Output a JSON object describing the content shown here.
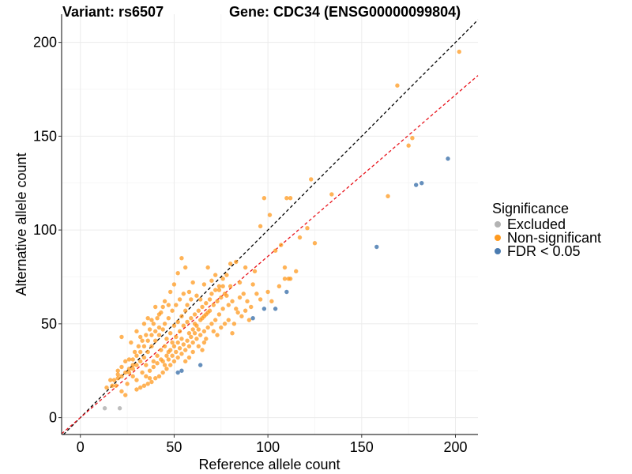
{
  "chart_data": {
    "type": "scatter",
    "title_left": "Variant: rs6507",
    "title_right": "Gene: CDC34 (ENSG00000099804)",
    "xlabel": "Reference allele count",
    "ylabel": "Alternative allele count",
    "xlim": [
      -10,
      212
    ],
    "ylim": [
      -9,
      215
    ],
    "xticks": [
      0,
      50,
      100,
      150,
      200
    ],
    "yticks": [
      0,
      50,
      100,
      150,
      200
    ],
    "xtick_labels": [
      "0",
      "50",
      "100",
      "150",
      "200"
    ],
    "ytick_labels": [
      "0",
      "50",
      "100",
      "150",
      "200"
    ],
    "grid": true,
    "legend": {
      "title": "Significance",
      "position": "right",
      "entries": [
        {
          "label": "Excluded",
          "color": "#b3b3b3"
        },
        {
          "label": "Non-significant",
          "color": "#ff9a1f"
        },
        {
          "label": "FDR < 0.05",
          "color": "#4a7bb0"
        }
      ]
    },
    "reference_lines": [
      {
        "name": "identity",
        "slope": 1.0,
        "intercept": 0,
        "color": "#000000",
        "style": "dashed"
      },
      {
        "name": "fitted",
        "slope": 0.86,
        "intercept": 0,
        "color": "#e8141c",
        "style": "dashed"
      }
    ],
    "series": [
      {
        "name": "Excluded",
        "color": "#b3b3b3",
        "points": [
          [
            13,
            5
          ],
          [
            21,
            5
          ]
        ]
      },
      {
        "name": "FDR < 0.05",
        "color": "#4a7bb0",
        "points": [
          [
            196,
            138
          ],
          [
            182,
            125
          ],
          [
            179,
            124
          ],
          [
            158,
            91
          ],
          [
            110,
            67
          ],
          [
            104,
            58
          ],
          [
            98,
            58
          ],
          [
            92,
            53
          ],
          [
            64,
            28
          ],
          [
            54,
            25
          ],
          [
            52,
            24
          ]
        ]
      },
      {
        "name": "Non-significant",
        "color": "#ff9a1f",
        "points": [
          [
            202,
            195
          ],
          [
            169,
            177
          ],
          [
            177,
            149
          ],
          [
            175,
            145
          ],
          [
            164,
            118
          ],
          [
            134,
            119
          ],
          [
            123,
            127
          ],
          [
            125,
            93
          ],
          [
            121,
            101
          ],
          [
            112,
            117
          ],
          [
            110,
            117
          ],
          [
            98,
            117
          ],
          [
            107,
            92
          ],
          [
            111,
            74
          ],
          [
            112,
            74
          ],
          [
            109,
            80
          ],
          [
            104,
            89
          ],
          [
            117,
            96
          ],
          [
            96,
            102
          ],
          [
            101,
            108
          ],
          [
            93,
            78
          ],
          [
            92,
            71
          ],
          [
            88,
            80
          ],
          [
            85,
            72
          ],
          [
            83,
            83
          ],
          [
            80,
            82
          ],
          [
            78,
            76
          ],
          [
            76,
            70
          ],
          [
            74,
            68
          ],
          [
            72,
            76
          ],
          [
            70,
            73
          ],
          [
            68,
            80
          ],
          [
            66,
            71
          ],
          [
            64,
            63
          ],
          [
            62,
            65
          ],
          [
            60,
            72
          ],
          [
            58,
            67
          ],
          [
            56,
            80
          ],
          [
            54,
            85
          ],
          [
            52,
            77
          ],
          [
            50,
            71
          ],
          [
            48,
            67
          ],
          [
            47,
            60
          ],
          [
            45,
            62
          ],
          [
            44,
            59
          ],
          [
            42,
            55
          ],
          [
            40,
            59
          ],
          [
            38,
            52
          ],
          [
            36,
            53
          ],
          [
            34,
            50
          ],
          [
            32,
            43
          ],
          [
            30,
            46
          ],
          [
            27,
            40
          ],
          [
            22,
            43
          ],
          [
            18,
            20
          ],
          [
            16,
            20
          ],
          [
            14,
            16
          ],
          [
            22,
            14
          ],
          [
            24,
            12
          ],
          [
            20,
            23
          ],
          [
            25,
            18
          ],
          [
            28,
            22
          ],
          [
            30,
            20
          ],
          [
            33,
            24
          ],
          [
            35,
            28
          ],
          [
            37,
            25
          ],
          [
            39,
            30
          ],
          [
            41,
            33
          ],
          [
            43,
            36
          ],
          [
            45,
            38
          ],
          [
            47,
            35
          ],
          [
            49,
            40
          ],
          [
            51,
            43
          ],
          [
            53,
            46
          ],
          [
            55,
            49
          ],
          [
            57,
            51
          ],
          [
            59,
            53
          ],
          [
            61,
            55
          ],
          [
            63,
            57
          ],
          [
            65,
            59
          ],
          [
            67,
            61
          ],
          [
            69,
            63
          ],
          [
            71,
            60
          ],
          [
            73,
            62
          ],
          [
            75,
            64
          ],
          [
            77,
            66
          ],
          [
            79,
            60
          ],
          [
            81,
            62
          ],
          [
            83,
            58
          ],
          [
            85,
            64
          ],
          [
            87,
            66
          ],
          [
            89,
            62
          ],
          [
            91,
            59
          ],
          [
            94,
            66
          ],
          [
            96,
            63
          ],
          [
            100,
            67
          ],
          [
            102,
            62
          ],
          [
            106,
            70
          ],
          [
            109,
            74
          ],
          [
            115,
            78
          ],
          [
            80,
            70
          ],
          [
            78,
            65
          ],
          [
            76,
            58
          ],
          [
            74,
            55
          ],
          [
            72,
            52
          ],
          [
            70,
            50
          ],
          [
            68,
            48
          ],
          [
            66,
            46
          ],
          [
            64,
            44
          ],
          [
            62,
            42
          ],
          [
            60,
            40
          ],
          [
            58,
            38
          ],
          [
            56,
            36
          ],
          [
            54,
            34
          ],
          [
            52,
            32
          ],
          [
            50,
            30
          ],
          [
            48,
            28
          ],
          [
            46,
            26
          ],
          [
            44,
            24
          ],
          [
            42,
            22
          ],
          [
            40,
            21
          ],
          [
            38,
            19
          ],
          [
            36,
            18
          ],
          [
            34,
            17
          ],
          [
            32,
            16
          ],
          [
            30,
            15
          ],
          [
            28,
            28
          ],
          [
            26,
            26
          ],
          [
            24,
            24
          ],
          [
            22,
            22
          ],
          [
            20,
            21
          ],
          [
            19,
            17
          ],
          [
            17,
            17
          ],
          [
            26,
            31
          ],
          [
            29,
            35
          ],
          [
            31,
            38
          ],
          [
            33,
            41
          ],
          [
            35,
            44
          ],
          [
            37,
            47
          ],
          [
            39,
            50
          ],
          [
            41,
            53
          ],
          [
            43,
            56
          ],
          [
            45,
            50
          ],
          [
            47,
            53
          ],
          [
            49,
            57
          ],
          [
            51,
            60
          ],
          [
            53,
            63
          ],
          [
            55,
            66
          ],
          [
            57,
            60
          ],
          [
            59,
            63
          ],
          [
            61,
            50
          ],
          [
            63,
            47
          ],
          [
            65,
            53
          ],
          [
            67,
            55
          ],
          [
            69,
            57
          ],
          [
            71,
            46
          ],
          [
            73,
            44
          ],
          [
            75,
            48
          ],
          [
            77,
            50
          ],
          [
            79,
            52
          ],
          [
            81,
            45
          ],
          [
            66,
            40
          ],
          [
            60,
            35
          ],
          [
            58,
            32
          ],
          [
            56,
            30
          ],
          [
            54,
            42
          ],
          [
            52,
            40
          ],
          [
            50,
            38
          ],
          [
            48,
            45
          ],
          [
            46,
            42
          ],
          [
            44,
            47
          ],
          [
            42,
            44
          ],
          [
            40,
            41
          ],
          [
            38,
            38
          ],
          [
            36,
            35
          ],
          [
            34,
            32
          ],
          [
            32,
            30
          ],
          [
            30,
            28
          ],
          [
            28,
            26
          ],
          [
            26,
            24
          ],
          [
            24,
            30
          ],
          [
            22,
            27
          ],
          [
            20,
            25
          ],
          [
            44,
            30
          ],
          [
            46,
            33
          ],
          [
            48,
            36
          ],
          [
            50,
            49
          ],
          [
            52,
            51
          ],
          [
            54,
            54
          ],
          [
            56,
            57
          ],
          [
            58,
            45
          ],
          [
            60,
            47
          ],
          [
            62,
            49
          ],
          [
            64,
            52
          ],
          [
            66,
            54
          ],
          [
            68,
            56
          ],
          [
            70,
            66
          ],
          [
            72,
            68
          ],
          [
            74,
            70
          ],
          [
            76,
            74
          ],
          [
            40,
            46
          ],
          [
            42,
            48
          ],
          [
            38,
            44
          ],
          [
            36,
            41
          ],
          [
            34,
            38
          ],
          [
            32,
            35
          ],
          [
            30,
            33
          ],
          [
            28,
            31
          ],
          [
            35,
            22
          ],
          [
            37,
            21
          ],
          [
            39,
            27
          ],
          [
            41,
            29
          ],
          [
            43,
            31
          ],
          [
            45,
            28
          ],
          [
            47,
            31
          ],
          [
            49,
            33
          ],
          [
            51,
            35
          ],
          [
            53,
            37
          ],
          [
            55,
            39
          ],
          [
            57,
            41
          ],
          [
            59,
            43
          ],
          [
            61,
            45
          ],
          [
            63,
            38
          ],
          [
            65,
            36
          ],
          [
            67,
            42
          ],
          [
            86,
            54
          ],
          [
            88,
            57
          ],
          [
            90,
            52
          ],
          [
            84,
            56
          ],
          [
            82,
            50
          ]
        ]
      }
    ]
  }
}
